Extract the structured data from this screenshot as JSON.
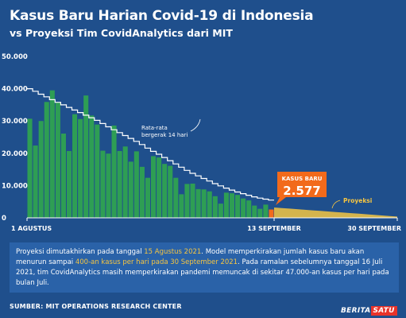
{
  "header": {
    "title": "Kasus Baru Harian Covid-19 di Indonesia",
    "subtitle": "vs Proyeksi Tim CovidAnalytics dari MIT"
  },
  "colors": {
    "background": "#1f4f8c",
    "bars": "#2e9e54",
    "highlight": "#f26a1b",
    "projection": "#f5c542",
    "line": "#ffffff"
  },
  "chart_data": {
    "type": "bar",
    "title": "Kasus Baru Harian Covid-19 di Indonesia",
    "subtitle": "vs Proyeksi Tim CovidAnalytics dari MIT",
    "y_ticks": [
      "50.000",
      "40.000",
      "30.000",
      "20.000",
      "10.000",
      "0"
    ],
    "ylim": [
      0,
      50000
    ],
    "x_labels": [
      "1 AGUSTUS",
      "13 SEPTEMBER",
      "30 SEPTEMBER"
    ],
    "series": [
      {
        "name": "Kasus baru harian",
        "values": [
          30700,
          22400,
          30000,
          35900,
          39500,
          35800,
          26100,
          20700,
          32100,
          30600,
          37900,
          31700,
          28900,
          20800,
          19900,
          28600,
          20700,
          22100,
          17400,
          20600,
          15800,
          12400,
          19100,
          18700,
          16700,
          16100,
          12400,
          7300,
          10500,
          10600,
          8900,
          8800,
          8200,
          6700,
          4400,
          7800,
          7600,
          7100,
          6000,
          5400,
          3800,
          2800,
          4100,
          2577
        ],
        "highlight_last": 2577
      },
      {
        "name": "Rata-rata bergerak 14 hari",
        "values": [
          40000,
          39200,
          38300,
          37500,
          36600,
          35800,
          35000,
          34200,
          33400,
          32600,
          31800,
          31000,
          30200,
          29200,
          28200,
          27300,
          26400,
          25500,
          24600,
          23700,
          22700,
          21600,
          20600,
          19700,
          18700,
          17700,
          16700,
          15700,
          14700,
          13800,
          13000,
          12200,
          11400,
          10600,
          9900,
          9200,
          8600,
          8000,
          7500,
          7000,
          6500,
          6100,
          5800,
          5500
        ]
      },
      {
        "name": "Proyeksi",
        "start_value": 3200,
        "end_value": 400,
        "points": 17
      }
    ],
    "annotations": {
      "moving_avg": "Rata-rata bergerak 14 hari",
      "callout_title": "KASUS BARU",
      "callout_value": "2.577",
      "projection": "Proyeksi"
    },
    "grid": false
  },
  "caption": {
    "p1": "Proyeksi dimutakhirkan pada tanggal ",
    "h1": "15 Agustus 2021",
    "p2": ". Model memperkirakan jumlah kasus baru akan menurun sampai ",
    "h2": "400-an kasus per hari pada 30 September 2021",
    "p3": ". Pada ramalan sebelumnya tanggal 16 Juli 2021, tim CovidAnalytics masih memperkirakan pandemi memuncak di sekitar 47.000-an kasus per hari pada bulan Juli."
  },
  "source": "SUMBER: MIT OPERATIONS RESEARCH CENTER",
  "logo": {
    "a": "BERITA",
    "b": "SATU"
  }
}
